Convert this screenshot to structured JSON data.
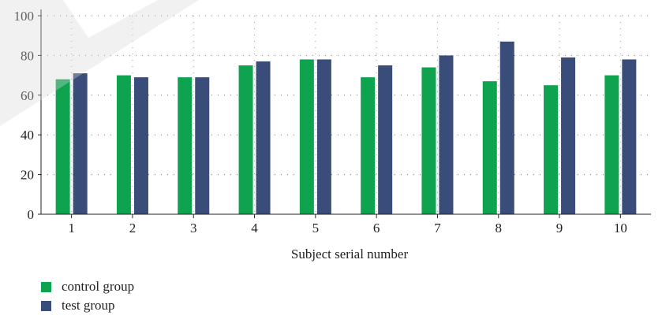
{
  "chart_data": {
    "type": "bar",
    "categories": [
      "1",
      "2",
      "3",
      "4",
      "5",
      "6",
      "7",
      "8",
      "9",
      "10"
    ],
    "series": [
      {
        "name": "control group",
        "color": "#0ea34f",
        "values": [
          68,
          70,
          69,
          75,
          78,
          69,
          74,
          67,
          65,
          70
        ]
      },
      {
        "name": "test group",
        "color": "#3a4d7a",
        "values": [
          71,
          69,
          69,
          77,
          78,
          75,
          80,
          87,
          79,
          78
        ]
      }
    ],
    "title": "",
    "xlabel": "Subject serial number",
    "ylabel": "",
    "ylim": [
      0,
      100
    ],
    "yticks": [
      0,
      20,
      40,
      60,
      80,
      100
    ],
    "grid": "horizontal dotted",
    "legend_position": "bottom-left"
  }
}
